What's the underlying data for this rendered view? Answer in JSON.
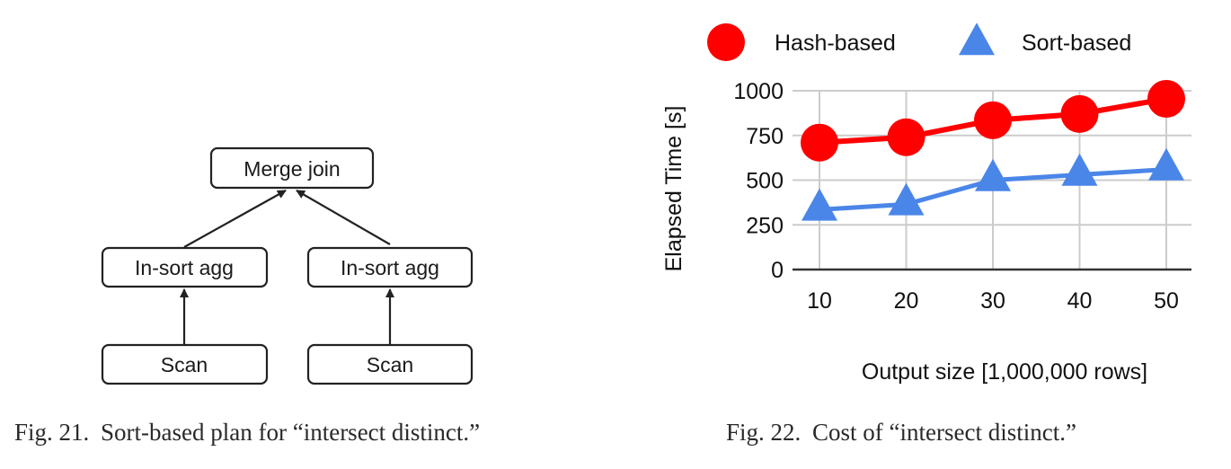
{
  "fig21": {
    "nodes": {
      "merge_join": "Merge join",
      "agg_left": "In-sort agg",
      "agg_right": "In-sort agg",
      "scan_left": "Scan",
      "scan_right": "Scan"
    },
    "caption_number": "Fig. 21.",
    "caption_text": "Sort-based plan for “intersect distinct.”"
  },
  "fig22": {
    "caption_number": "Fig. 22.",
    "caption_text": "Cost of “intersect distinct.”"
  },
  "colors": {
    "hash": "#ff0000",
    "sort": "#4a86e8",
    "grid": "#cccccc",
    "axis": "#333333"
  },
  "chart_data": {
    "type": "line",
    "title": "",
    "xlabel": "Output size [1,000,000 rows]",
    "ylabel": "Elapsed Time [s]",
    "categories": [
      10,
      20,
      30,
      40,
      50
    ],
    "ylim": [
      0,
      1000
    ],
    "yticks": [
      0,
      250,
      500,
      750,
      1000
    ],
    "grid": true,
    "legend_position": "top",
    "series": [
      {
        "name": "Hash-based",
        "marker": "circle",
        "values": [
          710,
          740,
          835,
          870,
          955
        ]
      },
      {
        "name": "Sort-based",
        "marker": "triangle",
        "values": [
          335,
          365,
          500,
          530,
          560
        ]
      }
    ]
  }
}
